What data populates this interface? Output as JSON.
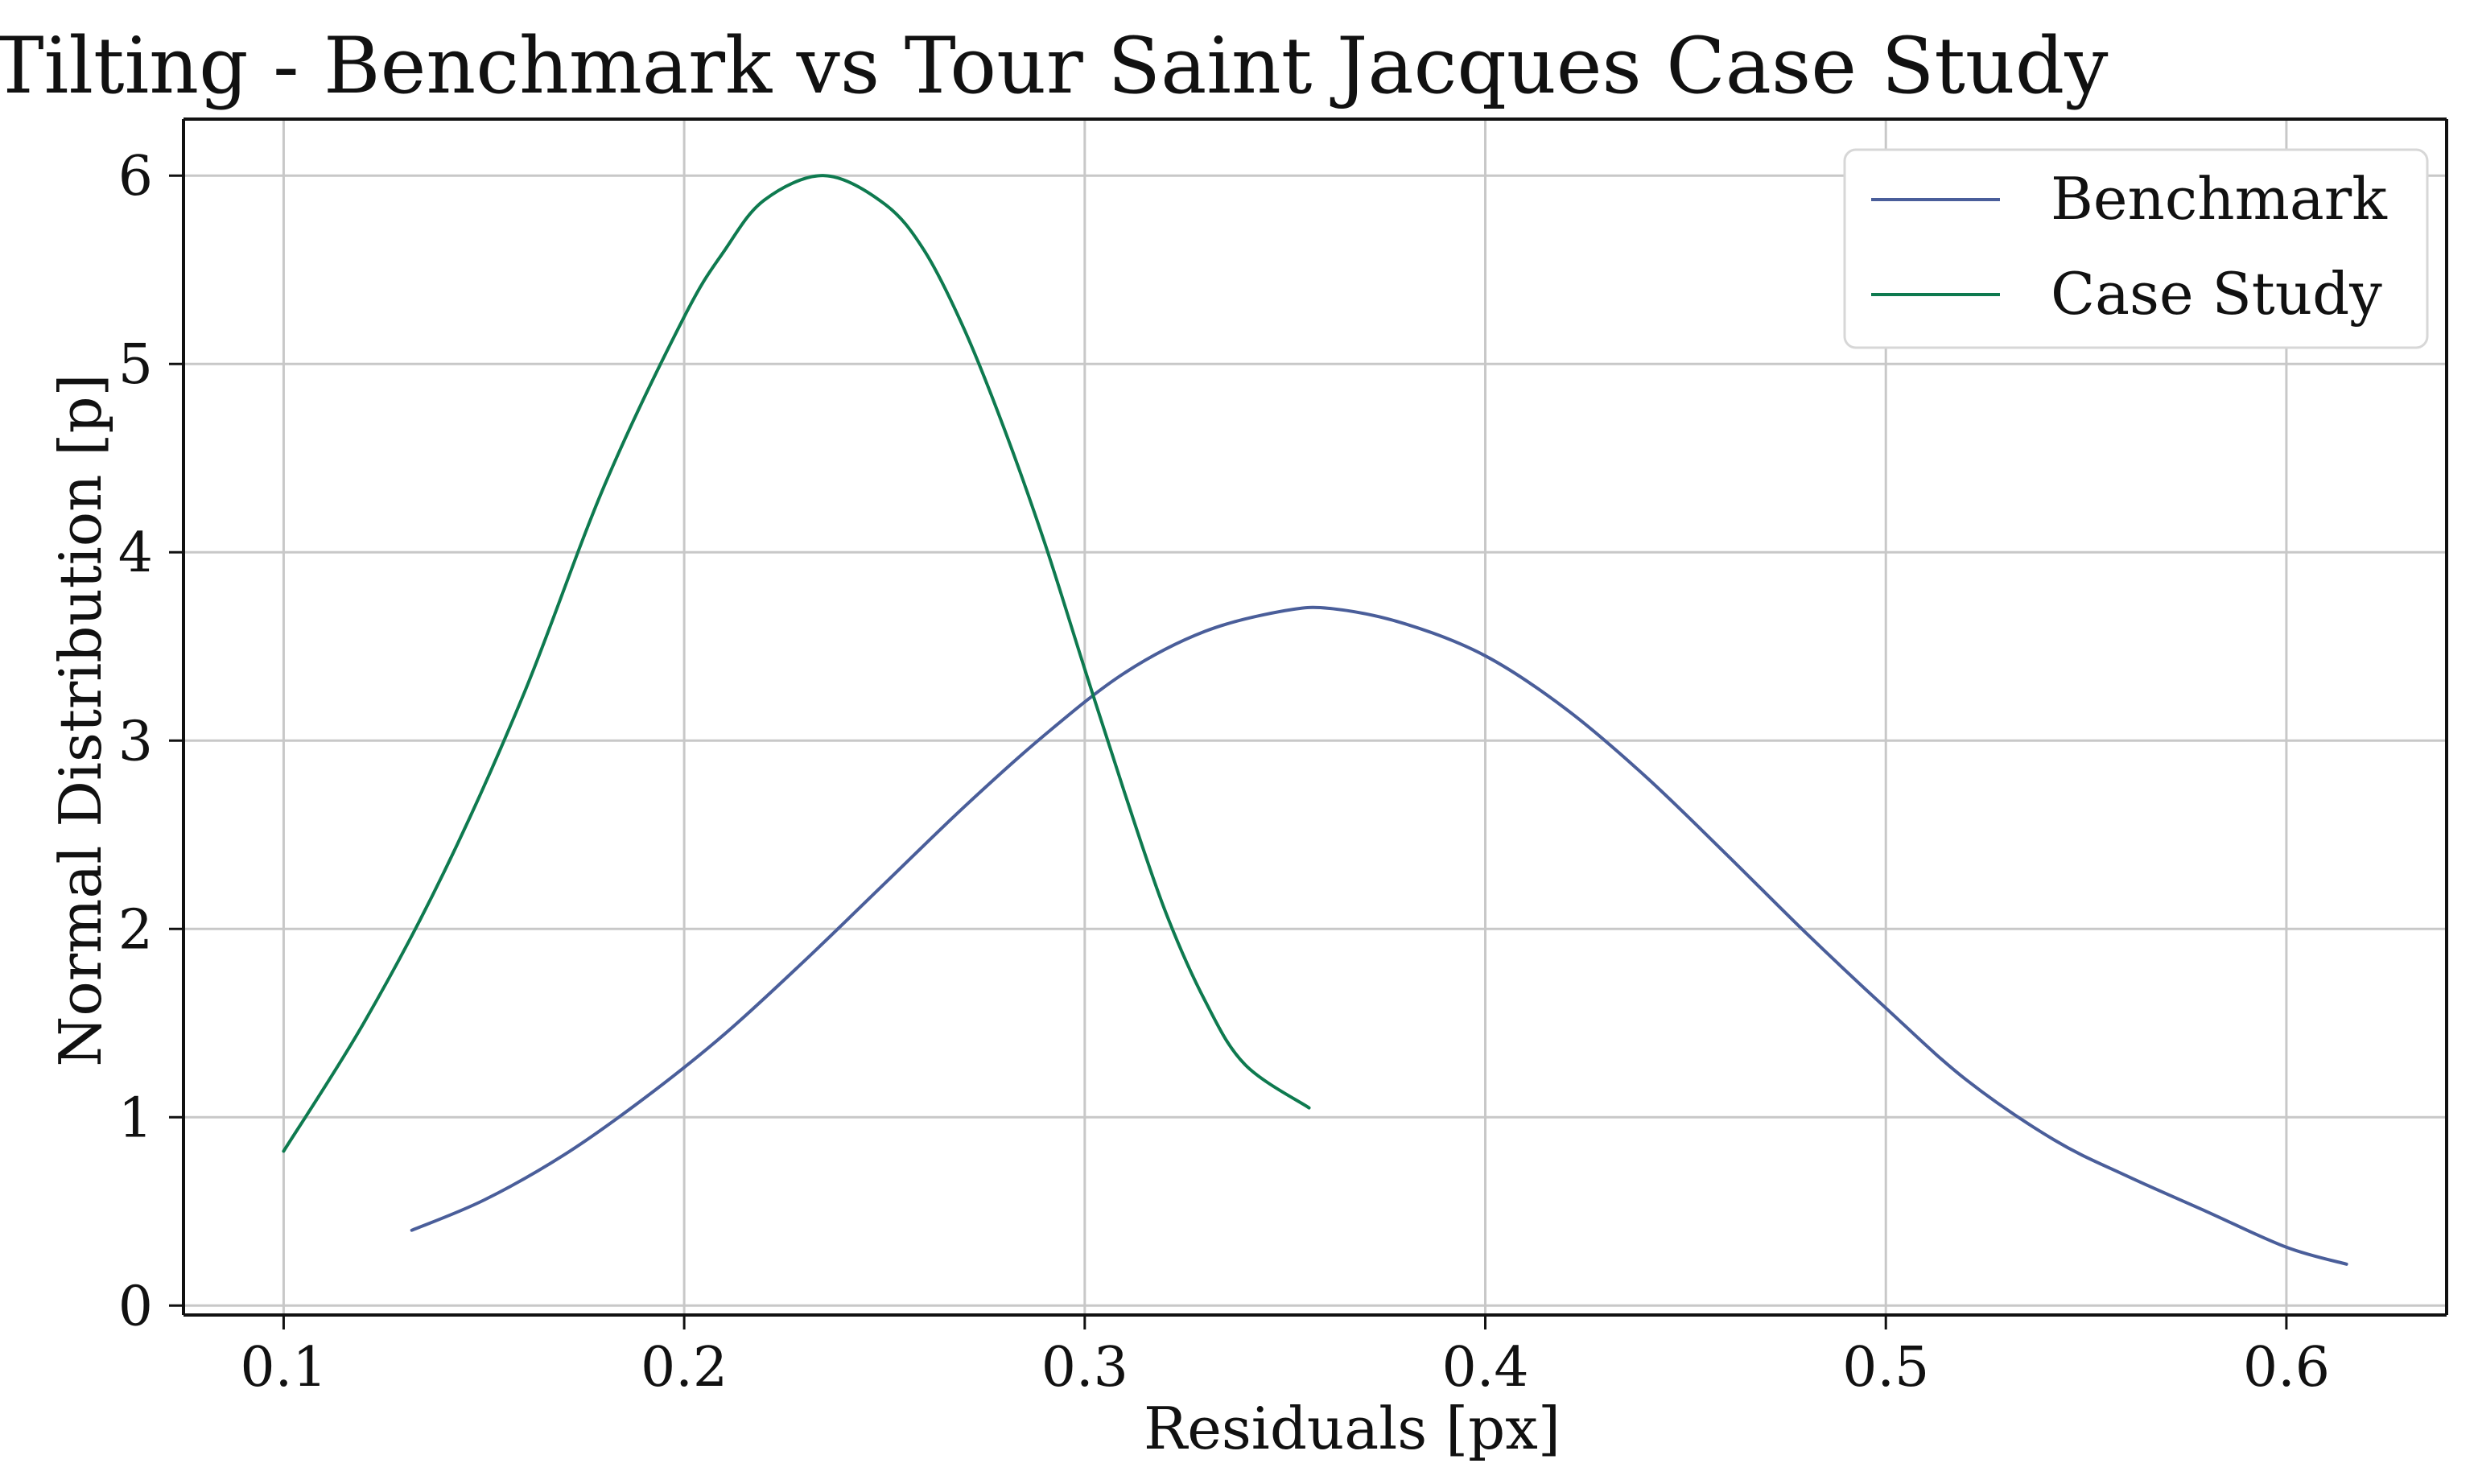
{
  "chart_data": {
    "type": "line",
    "title": "Tilting - Benchmark vs Tour Saint Jacques Case Study",
    "xlabel": "Residuals [px]",
    "ylabel": "Normal Distribution [p]",
    "xlim": [
      0.075,
      0.64
    ],
    "ylim": [
      -0.05,
      6.3
    ],
    "xticks": [
      0.1,
      0.2,
      0.3,
      0.4,
      0.5,
      0.6
    ],
    "xtick_labels": [
      "0.1",
      "0.2",
      "0.3",
      "0.4",
      "0.5",
      "0.6"
    ],
    "yticks": [
      0,
      1,
      2,
      3,
      4,
      5,
      6
    ],
    "ytick_labels": [
      "0",
      "1",
      "2",
      "3",
      "4",
      "5",
      "6"
    ],
    "grid": true,
    "legend_position": "top-right",
    "series": [
      {
        "name": "Benchmark",
        "color": "#4a5e9a",
        "x": [
          0.132,
          0.15,
          0.17,
          0.19,
          0.21,
          0.23,
          0.25,
          0.27,
          0.29,
          0.31,
          0.33,
          0.35,
          0.362,
          0.38,
          0.4,
          0.42,
          0.44,
          0.46,
          0.48,
          0.5,
          0.52,
          0.542,
          0.56,
          0.58,
          0.6,
          0.615
        ],
        "y": [
          0.4,
          0.56,
          0.8,
          1.1,
          1.44,
          1.83,
          2.24,
          2.65,
          3.03,
          3.36,
          3.58,
          3.69,
          3.7,
          3.62,
          3.45,
          3.17,
          2.81,
          2.4,
          1.98,
          1.58,
          1.2,
          0.88,
          0.69,
          0.5,
          0.31,
          0.22
        ]
      },
      {
        "name": "Case Study",
        "color": "#0e7a4f",
        "x": [
          0.1,
          0.12,
          0.14,
          0.16,
          0.18,
          0.2,
          0.21,
          0.22,
          0.235,
          0.25,
          0.26,
          0.27,
          0.28,
          0.29,
          0.3,
          0.31,
          0.32,
          0.33,
          0.34,
          0.356
        ],
        "y": [
          0.82,
          1.5,
          2.3,
          3.25,
          4.35,
          5.25,
          5.6,
          5.87,
          6.0,
          5.85,
          5.6,
          5.18,
          4.65,
          4.05,
          3.38,
          2.72,
          2.1,
          1.62,
          1.28,
          1.05
        ]
      }
    ]
  }
}
